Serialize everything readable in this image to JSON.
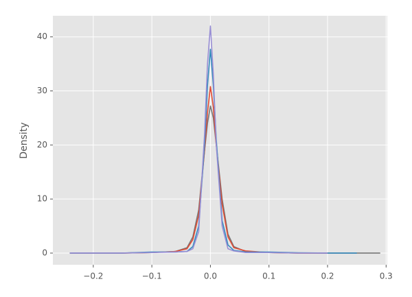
{
  "chart_data": {
    "type": "line",
    "y_label": "Density",
    "x": [
      -0.24,
      -0.2,
      -0.15,
      -0.1,
      -0.06,
      -0.04,
      -0.03,
      -0.02,
      -0.01,
      -0.005,
      0,
      0.005,
      0.01,
      0.02,
      0.03,
      0.04,
      0.06,
      0.1,
      0.15,
      0.2,
      0.25,
      0.29
    ],
    "series": [
      {
        "color": "#777777",
        "values": [
          0,
          0,
          0,
          0.1,
          0.3,
          1,
          3,
          8,
          19,
          24,
          27.2,
          25,
          20,
          10,
          3.5,
          1.2,
          0.3,
          0.1,
          0,
          0,
          0,
          0
        ]
      },
      {
        "color": "#E24A33",
        "values": [
          0,
          0,
          0,
          0.1,
          0.3,
          0.8,
          2.5,
          7,
          19,
          26,
          30.8,
          27,
          20,
          9,
          3,
          1,
          0.4,
          0.1,
          0,
          0,
          null,
          null
        ]
      },
      {
        "color": "#348ABD",
        "values": [
          0,
          0,
          0,
          0.2,
          0.2,
          0.3,
          1.2,
          5,
          20,
          31,
          37.7,
          31,
          21,
          6,
          1.5,
          0.5,
          0.2,
          0.2,
          0.05,
          0,
          0,
          null
        ]
      },
      {
        "color": "#988ED5",
        "values": [
          0,
          0,
          0,
          0.1,
          0.2,
          0.3,
          0.8,
          4,
          22,
          35,
          42,
          33,
          20,
          5,
          0.8,
          0.4,
          0.1,
          0.1,
          0,
          0,
          null,
          null
        ]
      }
    ],
    "xlim": [
      -0.269,
      0.302
    ],
    "ylim": [
      -2.16,
      43.9
    ],
    "xticks": [
      {
        "value": -0.2,
        "label": "−0.2"
      },
      {
        "value": -0.1,
        "label": "−0.1"
      },
      {
        "value": 0,
        "label": "0.0"
      },
      {
        "value": 0.1,
        "label": "0.1"
      },
      {
        "value": 0.2,
        "label": "0.2"
      },
      {
        "value": 0.3,
        "label": "0.3"
      }
    ],
    "yticks": [
      0,
      10,
      20,
      30,
      40
    ],
    "grid": true
  }
}
